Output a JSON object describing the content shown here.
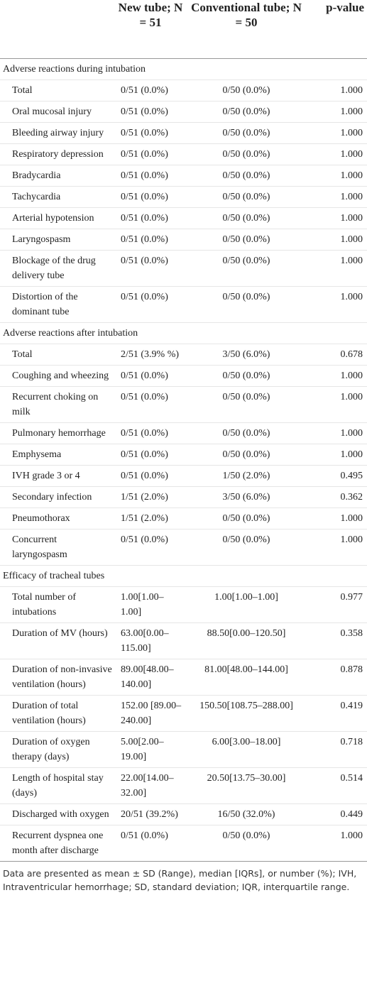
{
  "header": {
    "columns": [
      "New tube; N = 51",
      "Conventional tube; N = 50",
      "p-value"
    ]
  },
  "sections": [
    {
      "title": "Adverse reactions during intubation",
      "rows": [
        [
          "Total",
          "0/51 (0.0%)",
          "0/50 (0.0%)",
          "1.000"
        ],
        [
          "Oral mucosal injury",
          "0/51 (0.0%)",
          "0/50 (0.0%)",
          "1.000"
        ],
        [
          "Bleeding airway injury",
          "0/51 (0.0%)",
          "0/50 (0.0%)",
          "1.000"
        ],
        [
          "Respiratory depression",
          "0/51 (0.0%)",
          "0/50 (0.0%)",
          "1.000"
        ],
        [
          "Bradycardia",
          "0/51 (0.0%)",
          "0/50 (0.0%)",
          "1.000"
        ],
        [
          "Tachycardia",
          "0/51 (0.0%)",
          "0/50 (0.0%)",
          "1.000"
        ],
        [
          "Arterial hypotension",
          "0/51 (0.0%)",
          "0/50 (0.0%)",
          "1.000"
        ],
        [
          "Laryngospasm",
          "0/51 (0.0%)",
          "0/50 (0.0%)",
          "1.000"
        ],
        [
          "Blockage of the drug delivery tube",
          "0/51 (0.0%)",
          "0/50 (0.0%)",
          "1.000"
        ],
        [
          "Distortion of the dominant tube",
          "0/51 (0.0%)",
          "0/50 (0.0%)",
          "1.000"
        ]
      ]
    },
    {
      "title": "Adverse reactions after intubation",
      "rows": [
        [
          "Total",
          "2/51 (3.9% %)",
          "3/50 (6.0%)",
          "0.678"
        ],
        [
          "Coughing and wheezing",
          "0/51 (0.0%)",
          "0/50 (0.0%)",
          "1.000"
        ],
        [
          "Recurrent choking on milk",
          "0/51 (0.0%)",
          "0/50 (0.0%)",
          "1.000"
        ],
        [
          "Pulmonary hemorrhage",
          "0/51 (0.0%)",
          "0/50 (0.0%)",
          "1.000"
        ],
        [
          "Emphysema",
          "0/51 (0.0%)",
          "0/50 (0.0%)",
          "1.000"
        ],
        [
          "IVH grade 3 or 4",
          "0/51 (0.0%)",
          "1/50 (2.0%)",
          "0.495"
        ],
        [
          "Secondary infection",
          "1/51 (2.0%)",
          "3/50 (6.0%)",
          "0.362"
        ],
        [
          "Pneumothorax",
          "1/51 (2.0%)",
          "0/50 (0.0%)",
          "1.000"
        ],
        [
          "Concurrent laryngospasm",
          "0/51 (0.0%)",
          "0/50 (0.0%)",
          "1.000"
        ]
      ]
    },
    {
      "title": "Efficacy of tracheal tubes",
      "rows": [
        [
          "Total number of intubations",
          "1.00[1.00–1.00]",
          "1.00[1.00–1.00]",
          "0.977"
        ],
        [
          "Duration of MV (hours)",
          "63.00[0.00–115.00]",
          "88.50[0.00–120.50]",
          "0.358"
        ],
        [
          "Duration of non-invasive ventilation (hours)",
          "89.00[48.00–140.00]",
          "81.00[48.00–144.00]",
          "0.878"
        ],
        [
          "Duration of total ventilation (hours)",
          "152.00 [89.00–240.00]",
          "150.50[108.75–288.00]",
          "0.419"
        ],
        [
          "Duration of oxygen therapy (days)",
          "5.00[2.00–19.00]",
          "6.00[3.00–18.00]",
          "0.718"
        ],
        [
          "Length of hospital stay (days)",
          "22.00[14.00–32.00]",
          "20.50[13.75–30.00]",
          "0.514"
        ],
        [
          "Discharged with oxygen",
          "20/51 (39.2%)",
          "16/50 (32.0%)",
          "0.449"
        ],
        [
          "Recurrent dyspnea one month after discharge",
          "0/51 (0.0%)",
          "0/50 (0.0%)",
          "1.000"
        ]
      ]
    }
  ],
  "footnote": "Data are presented as mean ± SD (Range), median [IQRs], or number (%); IVH, Intraventricular hemorrhage; SD, standard deviation; IQR, interquartile range."
}
